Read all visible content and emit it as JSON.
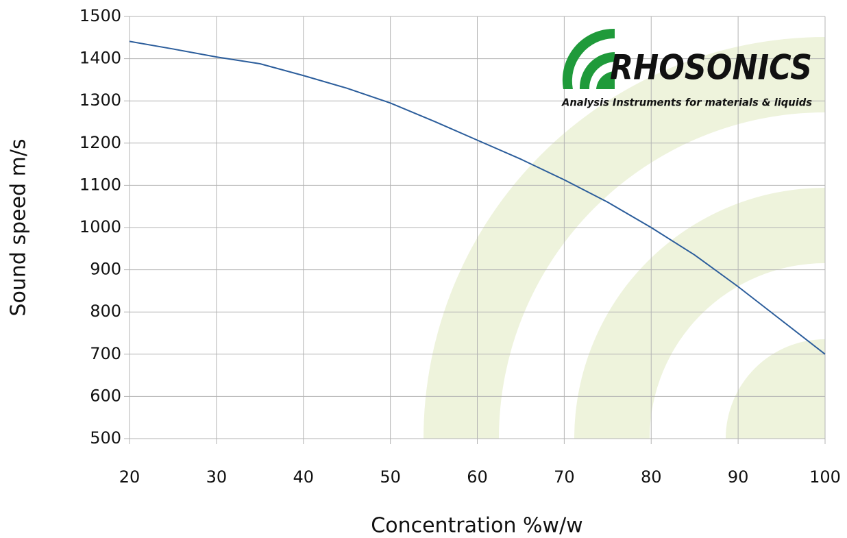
{
  "chart_data": {
    "type": "line",
    "x_label": "Concentration %w/w",
    "y_label": "Sound speed m/s",
    "logo": {
      "name": "RHOSONICS",
      "tagline": "Analysis Instruments for materials & liquids"
    },
    "x": [
      20,
      25,
      30,
      35,
      40,
      45,
      50,
      55,
      60,
      65,
      70,
      75,
      80,
      85,
      90,
      95,
      100
    ],
    "series": [
      {
        "color": "#2b5d9b",
        "values": [
          1441,
          1423,
          1404,
          1388,
          1360,
          1330,
          1295,
          1252,
          1207,
          1162,
          1113,
          1060,
          1000,
          935,
          860,
          780,
          700
        ]
      }
    ],
    "xlim": [
      20,
      100
    ],
    "xticks": [
      20,
      30,
      40,
      50,
      60,
      70,
      80,
      90,
      100
    ],
    "ylim": [
      500,
      1500
    ],
    "yticks": [
      500,
      600,
      700,
      800,
      900,
      1000,
      1100,
      1200,
      1300,
      1400,
      1500
    ],
    "grid": true
  }
}
